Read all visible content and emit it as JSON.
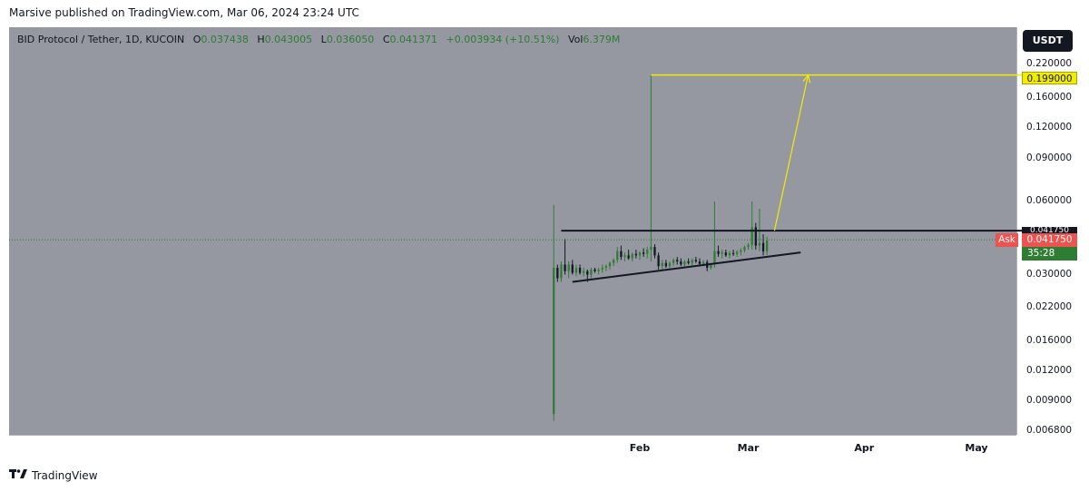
{
  "publisher_line": "Marsive published on TradingView.com, Mar 06, 2024 23:24 UTC",
  "legend": {
    "symbol": "BID Protocol / Tether, 1D, KUCOIN",
    "o_label": "O",
    "o_value": "0.037438",
    "h_label": "H",
    "h_value": "0.043005",
    "l_label": "L",
    "l_value": "0.036050",
    "c_label": "C",
    "c_value": "0.041371",
    "change": "+0.003934 (+10.51%)",
    "vol_label": "Vol",
    "vol_value": "6.379M"
  },
  "currency_button": "USDT",
  "price_labels": {
    "target": "0.199000",
    "black": "0.041750",
    "ask_tag": "Ask",
    "ask_value": "0.041750",
    "countdown": "35:28"
  },
  "footer_brand": "TradingView",
  "colors": {
    "plot_bg": "#9598a1",
    "up": "#2e7d32",
    "down": "#131722",
    "target_line": "#f2ec00",
    "ask": "#ef5350"
  },
  "chart_data": {
    "type": "candlestick",
    "scale": "log",
    "ylim": [
      0.0068,
      0.22
    ],
    "y_ticks": [
      "0.220000",
      "0.160000",
      "0.120000",
      "0.090000",
      "0.060000",
      "0.030000",
      "0.022000",
      "0.016000",
      "0.012000",
      "0.009000",
      "0.006800"
    ],
    "x_ticks": [
      "Feb",
      "Mar",
      "Apr",
      "May"
    ],
    "x_tick_dates": [
      "2024-02-01",
      "2024-03-01",
      "2024-04-01",
      "2024-05-01"
    ],
    "candles": [
      {
        "date": "2024-01-09",
        "o": 0.008,
        "h": 0.058,
        "l": 0.0075,
        "c": 0.032
      },
      {
        "date": "2024-01-10",
        "o": 0.032,
        "h": 0.033,
        "l": 0.028,
        "c": 0.029
      },
      {
        "date": "2024-01-11",
        "o": 0.029,
        "h": 0.034,
        "l": 0.028,
        "c": 0.033
      },
      {
        "date": "2024-01-12",
        "o": 0.033,
        "h": 0.042,
        "l": 0.03,
        "c": 0.031
      },
      {
        "date": "2024-01-13",
        "o": 0.031,
        "h": 0.034,
        "l": 0.029,
        "c": 0.033
      },
      {
        "date": "2024-01-14",
        "o": 0.033,
        "h": 0.0345,
        "l": 0.03,
        "c": 0.0305
      },
      {
        "date": "2024-01-15",
        "o": 0.0305,
        "h": 0.033,
        "l": 0.0295,
        "c": 0.032
      },
      {
        "date": "2024-01-16",
        "o": 0.032,
        "h": 0.033,
        "l": 0.03,
        "c": 0.0305
      },
      {
        "date": "2024-01-17",
        "o": 0.0305,
        "h": 0.032,
        "l": 0.0295,
        "c": 0.031
      },
      {
        "date": "2024-01-18",
        "o": 0.031,
        "h": 0.0315,
        "l": 0.028,
        "c": 0.03
      },
      {
        "date": "2024-01-19",
        "o": 0.03,
        "h": 0.032,
        "l": 0.029,
        "c": 0.0315
      },
      {
        "date": "2024-01-20",
        "o": 0.0315,
        "h": 0.032,
        "l": 0.0305,
        "c": 0.031
      },
      {
        "date": "2024-01-21",
        "o": 0.031,
        "h": 0.032,
        "l": 0.03,
        "c": 0.0315
      },
      {
        "date": "2024-01-22",
        "o": 0.0315,
        "h": 0.033,
        "l": 0.0305,
        "c": 0.032
      },
      {
        "date": "2024-01-23",
        "o": 0.032,
        "h": 0.033,
        "l": 0.031,
        "c": 0.0325
      },
      {
        "date": "2024-01-24",
        "o": 0.0325,
        "h": 0.034,
        "l": 0.0315,
        "c": 0.0335
      },
      {
        "date": "2024-01-25",
        "o": 0.0335,
        "h": 0.035,
        "l": 0.0325,
        "c": 0.0345
      },
      {
        "date": "2024-01-26",
        "o": 0.0345,
        "h": 0.039,
        "l": 0.0335,
        "c": 0.0375
      },
      {
        "date": "2024-01-27",
        "o": 0.0375,
        "h": 0.0395,
        "l": 0.0345,
        "c": 0.0355
      },
      {
        "date": "2024-01-28",
        "o": 0.0355,
        "h": 0.037,
        "l": 0.034,
        "c": 0.036
      },
      {
        "date": "2024-01-29",
        "o": 0.036,
        "h": 0.038,
        "l": 0.0345,
        "c": 0.035
      },
      {
        "date": "2024-01-30",
        "o": 0.035,
        "h": 0.037,
        "l": 0.034,
        "c": 0.0365
      },
      {
        "date": "2024-01-31",
        "o": 0.0365,
        "h": 0.038,
        "l": 0.035,
        "c": 0.036
      },
      {
        "date": "2024-02-01",
        "o": 0.036,
        "h": 0.0375,
        "l": 0.0345,
        "c": 0.037
      },
      {
        "date": "2024-02-02",
        "o": 0.037,
        "h": 0.0385,
        "l": 0.0355,
        "c": 0.0365
      },
      {
        "date": "2024-02-03",
        "o": 0.0365,
        "h": 0.039,
        "l": 0.035,
        "c": 0.038
      },
      {
        "date": "2024-02-04",
        "o": 0.038,
        "h": 0.199,
        "l": 0.034,
        "c": 0.039
      },
      {
        "date": "2024-02-05",
        "o": 0.039,
        "h": 0.04,
        "l": 0.035,
        "c": 0.036
      },
      {
        "date": "2024-02-06",
        "o": 0.036,
        "h": 0.037,
        "l": 0.0315,
        "c": 0.0325
      },
      {
        "date": "2024-02-07",
        "o": 0.0325,
        "h": 0.0345,
        "l": 0.0315,
        "c": 0.0335
      },
      {
        "date": "2024-02-08",
        "o": 0.0335,
        "h": 0.0345,
        "l": 0.032,
        "c": 0.0325
      },
      {
        "date": "2024-02-09",
        "o": 0.0325,
        "h": 0.034,
        "l": 0.0318,
        "c": 0.0335
      },
      {
        "date": "2024-02-10",
        "o": 0.0335,
        "h": 0.035,
        "l": 0.0325,
        "c": 0.0345
      },
      {
        "date": "2024-02-11",
        "o": 0.0345,
        "h": 0.0355,
        "l": 0.033,
        "c": 0.034
      },
      {
        "date": "2024-02-12",
        "o": 0.034,
        "h": 0.035,
        "l": 0.0325,
        "c": 0.033
      },
      {
        "date": "2024-02-13",
        "o": 0.033,
        "h": 0.0345,
        "l": 0.0322,
        "c": 0.034
      },
      {
        "date": "2024-02-14",
        "o": 0.034,
        "h": 0.035,
        "l": 0.033,
        "c": 0.0335
      },
      {
        "date": "2024-02-15",
        "o": 0.0335,
        "h": 0.035,
        "l": 0.0325,
        "c": 0.0345
      },
      {
        "date": "2024-02-16",
        "o": 0.0345,
        "h": 0.0355,
        "l": 0.0335,
        "c": 0.034
      },
      {
        "date": "2024-02-17",
        "o": 0.034,
        "h": 0.035,
        "l": 0.0328,
        "c": 0.0332
      },
      {
        "date": "2024-02-18",
        "o": 0.0332,
        "h": 0.0345,
        "l": 0.0326,
        "c": 0.0338
      },
      {
        "date": "2024-02-19",
        "o": 0.0338,
        "h": 0.0345,
        "l": 0.031,
        "c": 0.032
      },
      {
        "date": "2024-02-20",
        "o": 0.032,
        "h": 0.0335,
        "l": 0.0315,
        "c": 0.033
      },
      {
        "date": "2024-02-21",
        "o": 0.033,
        "h": 0.06,
        "l": 0.032,
        "c": 0.0375
      },
      {
        "date": "2024-02-22",
        "o": 0.0375,
        "h": 0.0395,
        "l": 0.0355,
        "c": 0.0365
      },
      {
        "date": "2024-02-23",
        "o": 0.0365,
        "h": 0.038,
        "l": 0.035,
        "c": 0.037
      },
      {
        "date": "2024-02-24",
        "o": 0.037,
        "h": 0.038,
        "l": 0.0355,
        "c": 0.036
      },
      {
        "date": "2024-02-25",
        "o": 0.036,
        "h": 0.0375,
        "l": 0.035,
        "c": 0.0368
      },
      {
        "date": "2024-02-26",
        "o": 0.0368,
        "h": 0.038,
        "l": 0.0358,
        "c": 0.0365
      },
      {
        "date": "2024-02-27",
        "o": 0.0365,
        "h": 0.0378,
        "l": 0.0355,
        "c": 0.0372
      },
      {
        "date": "2024-02-28",
        "o": 0.0372,
        "h": 0.0385,
        "l": 0.036,
        "c": 0.0378
      },
      {
        "date": "2024-02-29",
        "o": 0.0378,
        "h": 0.0395,
        "l": 0.037,
        "c": 0.039
      },
      {
        "date": "2024-03-01",
        "o": 0.039,
        "h": 0.0405,
        "l": 0.038,
        "c": 0.0398
      },
      {
        "date": "2024-03-02",
        "o": 0.0398,
        "h": 0.06,
        "l": 0.038,
        "c": 0.047
      },
      {
        "date": "2024-03-03",
        "o": 0.047,
        "h": 0.049,
        "l": 0.038,
        "c": 0.0395
      },
      {
        "date": "2024-03-04",
        "o": 0.0395,
        "h": 0.056,
        "l": 0.0375,
        "c": 0.0405
      },
      {
        "date": "2024-03-05",
        "o": 0.0405,
        "h": 0.044,
        "l": 0.036,
        "c": 0.0374
      },
      {
        "date": "2024-03-06",
        "o": 0.0374,
        "h": 0.043,
        "l": 0.0361,
        "c": 0.0414
      }
    ],
    "drawings": {
      "resistance": {
        "from": "2024-01-11",
        "to": "2024-05-27",
        "price": 0.0455
      },
      "support": {
        "from": "2024-01-14",
        "y1": 0.028,
        "to": "2024-03-15",
        "y2": 0.037
      },
      "target_line": {
        "from": "2024-02-04",
        "to": "2024-05-27",
        "price": 0.199
      },
      "arrow": {
        "from": "2024-03-08",
        "y1": 0.0455,
        "to": "2024-03-17",
        "y2": 0.199
      }
    },
    "last_price": 0.04175
  }
}
